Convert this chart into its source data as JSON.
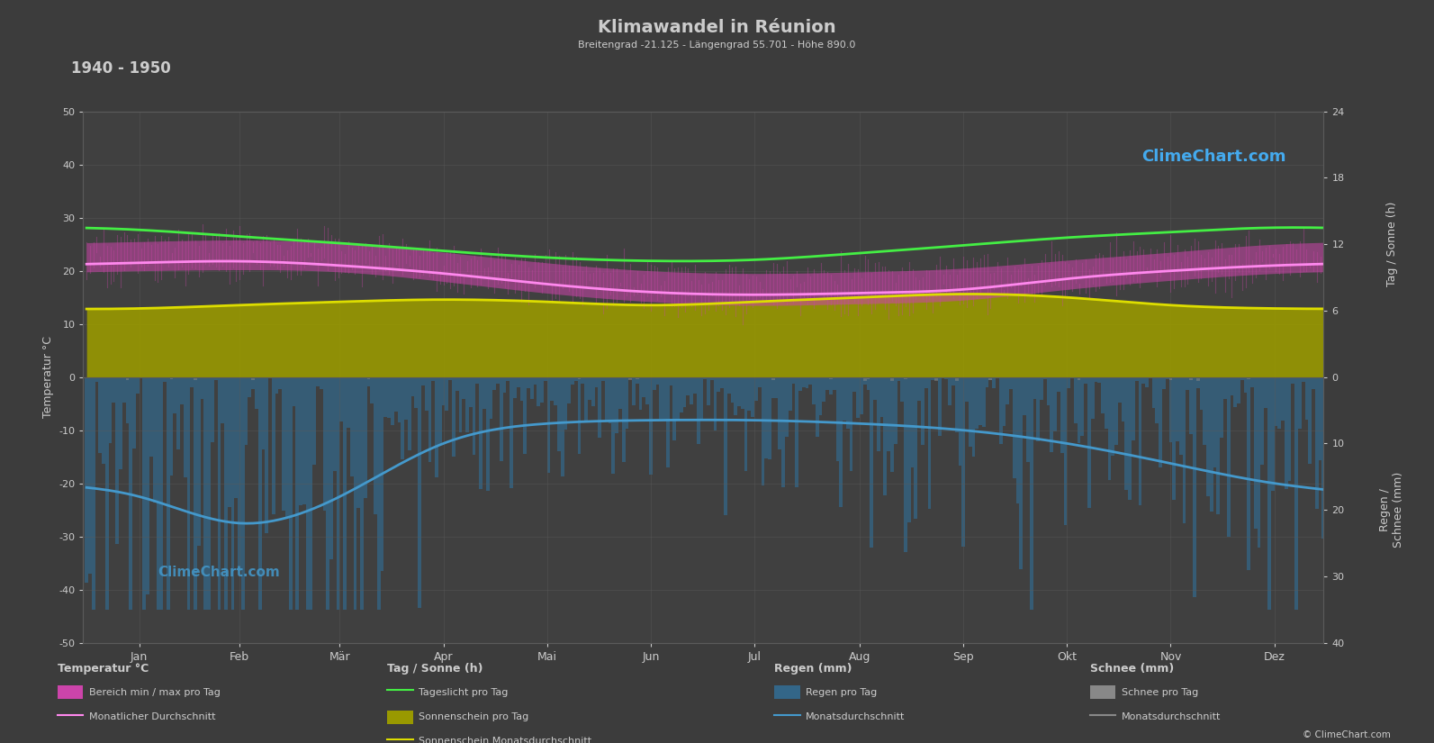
{
  "title": "Klimawandel in Réunion",
  "subtitle": "Breitengrad -21.125 - Längengrad 55.701 - Höhe 890.0",
  "period": "1940 - 1950",
  "background_color": "#3c3c3c",
  "plot_bg_color": "#404040",
  "grid_color": "#5a5a5a",
  "text_color": "#cccccc",
  "months": [
    "Jan",
    "Feb",
    "Mär",
    "Apr",
    "Mai",
    "Jun",
    "Jul",
    "Aug",
    "Sep",
    "Okt",
    "Nov",
    "Dez"
  ],
  "temp_max_monthly": [
    25.5,
    25.8,
    25.2,
    23.5,
    21.5,
    20.0,
    19.5,
    19.8,
    20.5,
    22.0,
    23.5,
    25.0
  ],
  "temp_min_monthly": [
    20.0,
    20.2,
    19.8,
    18.0,
    15.8,
    14.2,
    13.5,
    13.8,
    14.5,
    16.5,
    18.2,
    19.5
  ],
  "temp_avg_monthly": [
    21.5,
    21.8,
    21.0,
    19.5,
    17.5,
    16.0,
    15.5,
    15.8,
    16.5,
    18.5,
    20.0,
    21.0
  ],
  "daylight_monthly": [
    13.3,
    12.7,
    12.1,
    11.4,
    10.8,
    10.5,
    10.6,
    11.2,
    11.9,
    12.6,
    13.1,
    13.5
  ],
  "sunshine_monthly": [
    6.2,
    6.5,
    6.8,
    7.0,
    6.8,
    6.5,
    6.8,
    7.2,
    7.5,
    7.2,
    6.5,
    6.2
  ],
  "rain_avg_mm_monthly": [
    18.0,
    22.0,
    18.0,
    10.0,
    7.0,
    6.5,
    6.5,
    7.0,
    8.0,
    10.0,
    13.0,
    16.0
  ],
  "logo_text": "ClimeChart.com",
  "copyright_text": "© ClimeChart.com",
  "color_temp_band": "#cc44aa",
  "color_temp_line": "#ff88ee",
  "color_daylight": "#44ee44",
  "color_sunshine_fill": "#999900",
  "color_sunshine_line": "#dddd00",
  "color_rain_bar": "#336688",
  "color_rain_line": "#4499cc",
  "color_snow_bar": "#888888"
}
